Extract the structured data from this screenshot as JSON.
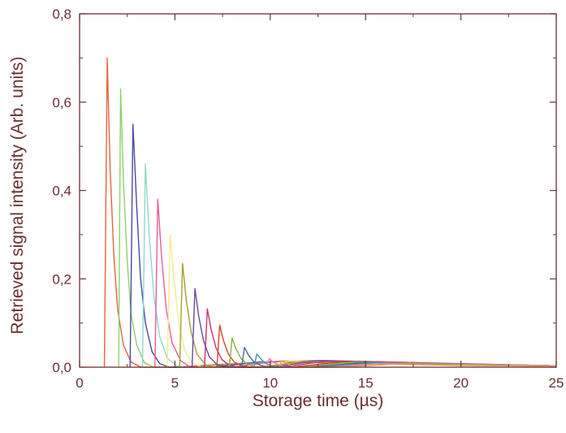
{
  "chart_data": {
    "type": "line",
    "title": "",
    "xlabel": "Storage time (µs)",
    "ylabel": "Retrieved signal intensity (Arb. units)",
    "xlim": [
      0,
      25
    ],
    "ylim": [
      0,
      0.8
    ],
    "x_ticks": [
      "0",
      "5",
      "10",
      "15",
      "20",
      "25"
    ],
    "y_ticks": [
      "0,0",
      "0,2",
      "0,4",
      "0,6",
      "0,8"
    ],
    "grid": false,
    "legend": "none",
    "axis_color": "#6b2f2f",
    "series": [
      {
        "color": "#e8643c",
        "values": [
          [
            1.3,
            0.0
          ],
          [
            1.45,
            0.7
          ],
          [
            1.6,
            0.45
          ],
          [
            1.8,
            0.25
          ],
          [
            2.0,
            0.13
          ],
          [
            2.3,
            0.05
          ],
          [
            2.7,
            0.012
          ],
          [
            3.2,
            0.0
          ],
          [
            5,
            0.0
          ],
          [
            8,
            0.008
          ],
          [
            10,
            0.012
          ],
          [
            14,
            0.009
          ],
          [
            20,
            0.004
          ],
          [
            25,
            0.002
          ]
        ]
      },
      {
        "color": "#8fd16a",
        "values": [
          [
            2.05,
            0.0
          ],
          [
            2.15,
            0.63
          ],
          [
            2.3,
            0.42
          ],
          [
            2.5,
            0.24
          ],
          [
            2.7,
            0.12
          ],
          [
            3.0,
            0.05
          ],
          [
            3.4,
            0.01
          ],
          [
            3.9,
            0.0
          ],
          [
            6,
            0.0
          ],
          [
            9,
            0.01
          ],
          [
            11,
            0.014
          ],
          [
            15,
            0.01
          ],
          [
            20,
            0.005
          ],
          [
            25,
            0.002
          ]
        ]
      },
      {
        "color": "#4a4aa0",
        "values": [
          [
            2.65,
            0.0
          ],
          [
            2.8,
            0.55
          ],
          [
            3.0,
            0.36
          ],
          [
            3.2,
            0.2
          ],
          [
            3.45,
            0.1
          ],
          [
            3.8,
            0.035
          ],
          [
            4.2,
            0.008
          ],
          [
            4.7,
            0.0
          ],
          [
            7,
            0.0
          ],
          [
            9.5,
            0.012
          ],
          [
            12,
            0.014
          ],
          [
            16,
            0.01
          ],
          [
            25,
            0.003
          ]
        ]
      },
      {
        "color": "#8fd8c8",
        "values": [
          [
            3.3,
            0.0
          ],
          [
            3.45,
            0.46
          ],
          [
            3.65,
            0.3
          ],
          [
            3.9,
            0.16
          ],
          [
            4.2,
            0.07
          ],
          [
            4.6,
            0.02
          ],
          [
            5.1,
            0.003
          ],
          [
            5.5,
            0.0
          ],
          [
            8,
            0.0
          ],
          [
            10,
            0.013
          ],
          [
            13,
            0.015
          ],
          [
            17,
            0.01
          ],
          [
            25,
            0.003
          ]
        ]
      },
      {
        "color": "#e85c9c",
        "values": [
          [
            3.95,
            0.0
          ],
          [
            4.1,
            0.38
          ],
          [
            4.3,
            0.25
          ],
          [
            4.55,
            0.13
          ],
          [
            4.85,
            0.055
          ],
          [
            5.3,
            0.015
          ],
          [
            5.8,
            0.0
          ],
          [
            8,
            0.0
          ],
          [
            10.5,
            0.014
          ],
          [
            13,
            0.015
          ],
          [
            18,
            0.009
          ],
          [
            25,
            0.003
          ]
        ]
      },
      {
        "color": "#f2ec8a",
        "values": [
          [
            4.6,
            0.0
          ],
          [
            4.75,
            0.3
          ],
          [
            4.95,
            0.2
          ],
          [
            5.2,
            0.1
          ],
          [
            5.5,
            0.04
          ],
          [
            5.9,
            0.01
          ],
          [
            6.4,
            0.0
          ],
          [
            9,
            0.0
          ],
          [
            11,
            0.014
          ],
          [
            14,
            0.014
          ],
          [
            19,
            0.008
          ],
          [
            25,
            0.003
          ]
        ]
      },
      {
        "color": "#a8a030",
        "values": [
          [
            5.25,
            0.0
          ],
          [
            5.4,
            0.235
          ],
          [
            5.6,
            0.15
          ],
          [
            5.85,
            0.08
          ],
          [
            6.15,
            0.03
          ],
          [
            6.6,
            0.006
          ],
          [
            7.0,
            0.0
          ],
          [
            9.5,
            0.0
          ],
          [
            12,
            0.015
          ],
          [
            15,
            0.013
          ],
          [
            20,
            0.007
          ],
          [
            25,
            0.003
          ]
        ]
      },
      {
        "color": "#6a4aa0",
        "values": [
          [
            5.9,
            0.0
          ],
          [
            6.05,
            0.178
          ],
          [
            6.25,
            0.115
          ],
          [
            6.5,
            0.06
          ],
          [
            6.8,
            0.024
          ],
          [
            7.2,
            0.006
          ],
          [
            7.7,
            0.0
          ],
          [
            10,
            0.0
          ],
          [
            12.5,
            0.015
          ],
          [
            16,
            0.012
          ],
          [
            21,
            0.006
          ],
          [
            25,
            0.003
          ]
        ]
      },
      {
        "color": "#c83078",
        "values": [
          [
            6.55,
            0.0
          ],
          [
            6.7,
            0.132
          ],
          [
            6.9,
            0.085
          ],
          [
            7.15,
            0.045
          ],
          [
            7.45,
            0.018
          ],
          [
            7.85,
            0.004
          ],
          [
            8.3,
            0.0
          ],
          [
            10.5,
            0.0
          ],
          [
            13,
            0.014
          ],
          [
            17,
            0.011
          ],
          [
            25,
            0.003
          ]
        ]
      },
      {
        "color": "#c84a2a",
        "values": [
          [
            7.2,
            0.0
          ],
          [
            7.35,
            0.095
          ],
          [
            7.55,
            0.06
          ],
          [
            7.8,
            0.03
          ],
          [
            8.1,
            0.012
          ],
          [
            8.5,
            0.003
          ],
          [
            9.0,
            0.0
          ],
          [
            11,
            0.0
          ],
          [
            14,
            0.013
          ],
          [
            18,
            0.009
          ],
          [
            25,
            0.003
          ]
        ]
      },
      {
        "color": "#8ab040",
        "values": [
          [
            7.85,
            0.0
          ],
          [
            8.0,
            0.066
          ],
          [
            8.2,
            0.042
          ],
          [
            8.45,
            0.021
          ],
          [
            8.75,
            0.008
          ],
          [
            9.2,
            0.0
          ],
          [
            11.5,
            0.0
          ],
          [
            14.5,
            0.012
          ],
          [
            19,
            0.008
          ],
          [
            25,
            0.003
          ]
        ]
      },
      {
        "color": "#4a6aa8",
        "values": [
          [
            8.5,
            0.0
          ],
          [
            8.65,
            0.045
          ],
          [
            8.85,
            0.028
          ],
          [
            9.1,
            0.014
          ],
          [
            9.45,
            0.005
          ],
          [
            9.9,
            0.0
          ],
          [
            12,
            0.0
          ],
          [
            15,
            0.011
          ],
          [
            20,
            0.007
          ],
          [
            25,
            0.003
          ]
        ]
      },
      {
        "color": "#40a090",
        "values": [
          [
            9.15,
            0.0
          ],
          [
            9.3,
            0.03
          ],
          [
            9.5,
            0.019
          ],
          [
            9.75,
            0.009
          ],
          [
            10.1,
            0.003
          ],
          [
            10.5,
            0.0
          ],
          [
            12.5,
            0.0
          ],
          [
            15.5,
            0.01
          ],
          [
            21,
            0.006
          ],
          [
            25,
            0.003
          ]
        ]
      },
      {
        "color": "#e87ab8",
        "values": [
          [
            9.8,
            0.0
          ],
          [
            9.95,
            0.02
          ],
          [
            10.15,
            0.012
          ],
          [
            10.4,
            0.006
          ],
          [
            10.8,
            0.0
          ],
          [
            13,
            0.0
          ],
          [
            16,
            0.009
          ],
          [
            22,
            0.005
          ],
          [
            25,
            0.003
          ]
        ]
      },
      {
        "color": "#e8a040",
        "values": [
          [
            10.45,
            0.0
          ],
          [
            10.6,
            0.014
          ],
          [
            10.8,
            0.009
          ],
          [
            11.1,
            0.004
          ],
          [
            11.5,
            0.0
          ],
          [
            13.5,
            0.0
          ],
          [
            17,
            0.008
          ],
          [
            22,
            0.004
          ],
          [
            25,
            0.002
          ]
        ]
      }
    ]
  }
}
